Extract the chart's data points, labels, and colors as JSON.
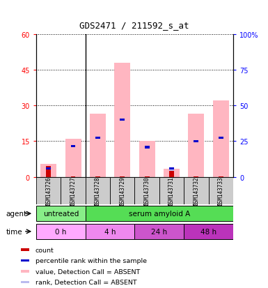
{
  "title": "GDS2471 / 211592_s_at",
  "samples": [
    "GSM143726",
    "GSM143727",
    "GSM143728",
    "GSM143729",
    "GSM143730",
    "GSM143731",
    "GSM143732",
    "GSM143733"
  ],
  "pink_bar_heights": [
    5.5,
    16.0,
    26.5,
    48.0,
    15.0,
    3.5,
    26.5,
    32.0
  ],
  "red_bar_heights": [
    4.5,
    0.3,
    0.3,
    0.3,
    0.3,
    2.5,
    0.3,
    0.3
  ],
  "blue_bar_heights": [
    3.5,
    13.0,
    16.5,
    24.0,
    12.5,
    3.5,
    15.0,
    16.5
  ],
  "light_blue_heights": [
    3.5,
    0.3,
    0.3,
    0.3,
    0.3,
    3.5,
    0.3,
    0.3
  ],
  "left_yticks": [
    0,
    15,
    30,
    45,
    60
  ],
  "right_yticks": [
    0,
    25,
    50,
    75,
    100
  ],
  "right_yticklabels": [
    "0",
    "25",
    "50",
    "75",
    "100%"
  ],
  "ylim": [
    0,
    60
  ],
  "bar_width": 0.65,
  "color_pink": "#FFB6C1",
  "color_red": "#CC0000",
  "color_blue": "#0000CC",
  "color_light_blue": "#BBBBEE",
  "agent_untreated_color": "#88EE88",
  "agent_serum_color": "#55DD55",
  "time_colors": [
    "#FFAAFF",
    "#EE88EE",
    "#CC55CC",
    "#BB33BB"
  ],
  "time_labels": [
    "0 h",
    "4 h",
    "24 h",
    "48 h"
  ],
  "legend_items": [
    {
      "color": "#CC0000",
      "label": "count"
    },
    {
      "color": "#0000CC",
      "label": "percentile rank within the sample"
    },
    {
      "color": "#FFB6C1",
      "label": "value, Detection Call = ABSENT"
    },
    {
      "color": "#BBBBEE",
      "label": "rank, Detection Call = ABSENT"
    }
  ]
}
